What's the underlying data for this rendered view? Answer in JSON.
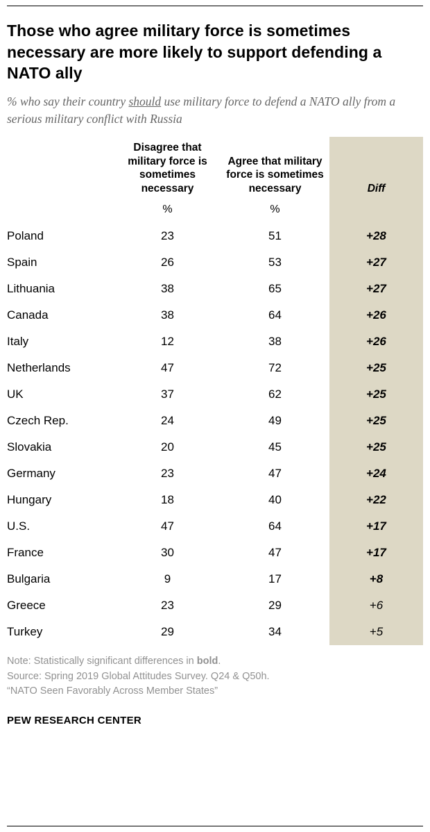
{
  "colors": {
    "diff_bg": "#ddd8c5",
    "subtitle_gray": "#666666",
    "note_gray": "#919191"
  },
  "chart_data": {
    "type": "table",
    "title": "Those who agree military force is sometimes necessary are more likely to support defending a NATO ally",
    "subtitle": "% who say their country should use military force to defend a NATO ally from a serious military conflict with Russia",
    "subtitle_parts": {
      "prefix": "% who say their country ",
      "underlined": "should",
      "suffix": " use military force to defend a NATO ally from a serious military conflict with Russia"
    },
    "unit": "%",
    "columns": {
      "country": "",
      "disagree": "Disagree that military force is sometimes necessary",
      "agree": "Agree that military force is sometimes necessary",
      "diff": "Diff"
    },
    "rows": [
      {
        "country": "Poland",
        "disagree": 23,
        "agree": 51,
        "diff": "+28",
        "significant": true
      },
      {
        "country": "Spain",
        "disagree": 26,
        "agree": 53,
        "diff": "+27",
        "significant": true
      },
      {
        "country": "Lithuania",
        "disagree": 38,
        "agree": 65,
        "diff": "+27",
        "significant": true
      },
      {
        "country": "Canada",
        "disagree": 38,
        "agree": 64,
        "diff": "+26",
        "significant": true
      },
      {
        "country": "Italy",
        "disagree": 12,
        "agree": 38,
        "diff": "+26",
        "significant": true
      },
      {
        "country": "Netherlands",
        "disagree": 47,
        "agree": 72,
        "diff": "+25",
        "significant": true
      },
      {
        "country": "UK",
        "disagree": 37,
        "agree": 62,
        "diff": "+25",
        "significant": true
      },
      {
        "country": "Czech Rep.",
        "disagree": 24,
        "agree": 49,
        "diff": "+25",
        "significant": true
      },
      {
        "country": "Slovakia",
        "disagree": 20,
        "agree": 45,
        "diff": "+25",
        "significant": true
      },
      {
        "country": "Germany",
        "disagree": 23,
        "agree": 47,
        "diff": "+24",
        "significant": true
      },
      {
        "country": "Hungary",
        "disagree": 18,
        "agree": 40,
        "diff": "+22",
        "significant": true
      },
      {
        "country": "U.S.",
        "disagree": 47,
        "agree": 64,
        "diff": "+17",
        "significant": true
      },
      {
        "country": "France",
        "disagree": 30,
        "agree": 47,
        "diff": "+17",
        "significant": true
      },
      {
        "country": "Bulgaria",
        "disagree": 9,
        "agree": 17,
        "diff": "+8",
        "significant": true
      },
      {
        "country": "Greece",
        "disagree": 23,
        "agree": 29,
        "diff": "+6",
        "significant": false
      },
      {
        "country": "Turkey",
        "disagree": 29,
        "agree": 34,
        "diff": "+5",
        "significant": false
      }
    ]
  },
  "footer": {
    "note_prefix": "Note: Statistically significant differences in ",
    "note_bold": "bold",
    "note_suffix": ".",
    "source": "Source: Spring 2019 Global Attitudes Survey. Q24 & Q50h.",
    "report": "“NATO Seen Favorably Across Member States”",
    "brand": "PEW RESEARCH CENTER"
  }
}
